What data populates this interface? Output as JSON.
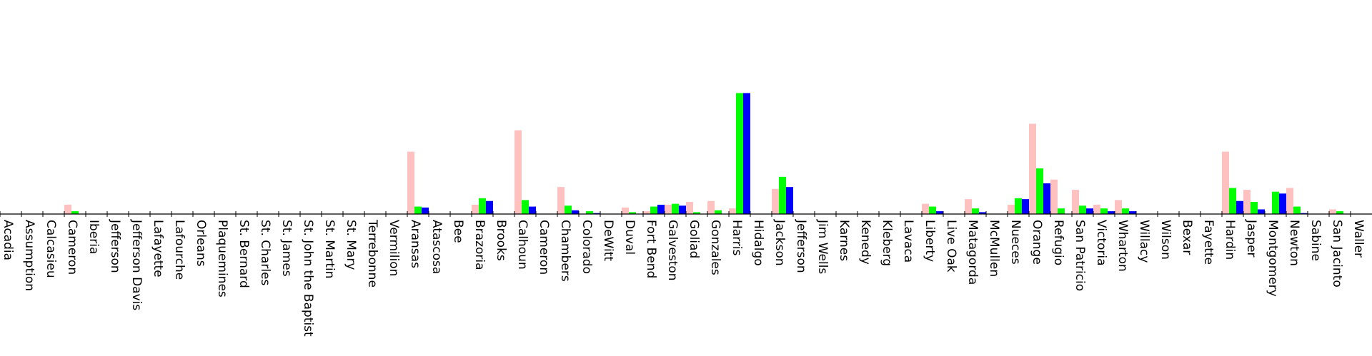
{
  "chart_data": {
    "type": "bar",
    "title": "",
    "xlabel": "",
    "ylabel": "",
    "ylim": [
      0,
      23
    ],
    "grid": false,
    "categories": [
      "Acadia",
      "Assumption",
      "Calcasieu",
      "Cameron",
      "Iberia",
      "Jefferson",
      "Jefferson Davis",
      "Lafayette",
      "Lafourche",
      "Orleans",
      "Plaquemines",
      "St. Bernard",
      "St. Charles",
      "St. James",
      "St. John the Baptist",
      "St. Martin",
      "St. Mary",
      "Terrebonne",
      "Vermilion",
      "Aransas",
      "Atascosa",
      "Bee",
      "Brazoria",
      "Brooks",
      "Calhoun",
      "Cameron",
      "Chambers",
      "Colorado",
      "DeWitt",
      "Duval",
      "Fort Bend",
      "Galveston",
      "Goliad",
      "Gonzales",
      "Harris",
      "Hidalgo",
      "Jackson",
      "Jefferson",
      "Jim Wells",
      "Karnes",
      "Kenedy",
      "Kleberg",
      "Lavaca",
      "Liberty",
      "Live Oak",
      "Matagorda",
      "McMullen",
      "Nueces",
      "Orange",
      "Refugio",
      "San Patricio",
      "Victoria",
      "Wharton",
      "Willacy",
      "Wilson",
      "Bexar",
      "Fayette",
      "Hardin",
      "Jasper",
      "Montgomery",
      "Newton",
      "Sabine",
      "San Jacinto",
      "Waller"
    ],
    "series": [
      {
        "color": "#ffc0c0",
        "values": [
          0,
          0,
          0,
          1,
          0,
          0,
          0,
          0,
          0,
          0,
          0,
          0,
          0,
          0,
          0,
          0,
          0,
          0,
          0,
          6.7,
          0,
          0,
          1,
          0,
          9,
          0,
          2.9,
          0,
          0,
          0.7,
          0.3,
          1,
          1.3,
          1.4,
          0.6,
          0,
          2.7,
          0,
          0,
          0,
          0,
          0,
          0,
          1.1,
          0,
          1.6,
          0,
          1,
          9.7,
          3.7,
          2.6,
          1,
          1.5,
          0,
          0,
          0,
          0,
          6.7,
          2.6,
          0,
          2.8,
          0,
          0.5,
          0
        ]
      },
      {
        "color": "#00ff00",
        "values": [
          0,
          0,
          0,
          0.3,
          0,
          0,
          0,
          0,
          0,
          0,
          0,
          0,
          0,
          0,
          0,
          0,
          0,
          0,
          0,
          0.8,
          0,
          0,
          1.7,
          0,
          1.5,
          0,
          0.9,
          0.3,
          0,
          0.2,
          0.8,
          1.1,
          0.2,
          0.4,
          13,
          0,
          4,
          0,
          0,
          0,
          0,
          0,
          0,
          0.8,
          0,
          0.6,
          0,
          1.7,
          4.9,
          0.6,
          0.9,
          0.6,
          0.6,
          0,
          0,
          0,
          0,
          2.8,
          1.3,
          2.4,
          0.8,
          0,
          0.3,
          0
        ]
      },
      {
        "color": "#0000ff",
        "values": [
          0,
          0,
          0,
          0,
          0,
          0,
          0,
          0,
          0,
          0,
          0,
          0,
          0,
          0,
          0,
          0,
          0,
          0,
          0,
          0.7,
          0,
          0,
          1.4,
          0,
          0.8,
          0,
          0.4,
          0.1,
          0,
          0,
          1,
          0.9,
          0,
          0,
          13,
          0,
          2.9,
          0,
          0,
          0,
          0,
          0,
          0,
          0.3,
          0,
          0.2,
          0,
          1.6,
          3.3,
          0,
          0.6,
          0.3,
          0.3,
          0,
          0,
          0,
          0,
          1.4,
          0.5,
          2.2,
          0.1,
          0,
          0,
          0
        ]
      }
    ]
  }
}
